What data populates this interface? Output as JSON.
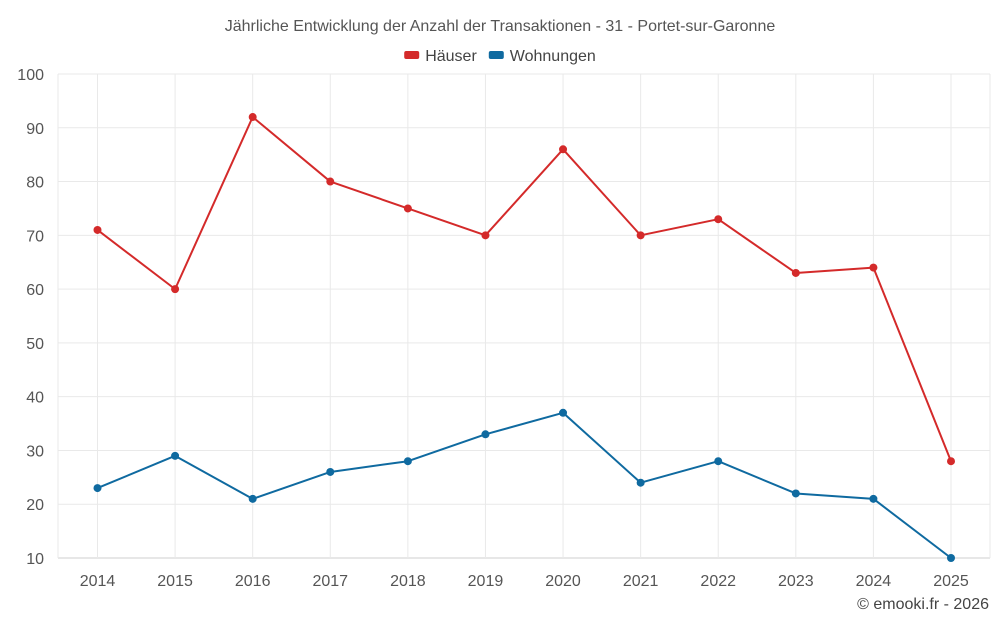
{
  "chart_data": {
    "type": "line",
    "title": "Jährliche Entwicklung der Anzahl der Transaktionen - 31 - Portet-sur-Garonne",
    "categories": [
      "2014",
      "2015",
      "2016",
      "2017",
      "2018",
      "2019",
      "2020",
      "2021",
      "2022",
      "2023",
      "2024",
      "2025"
    ],
    "ylim": [
      10,
      100
    ],
    "yticks": [
      10,
      20,
      30,
      40,
      50,
      60,
      70,
      80,
      90,
      100
    ],
    "grid": true,
    "legend_position": "top-center",
    "series": [
      {
        "name": "Häuser",
        "color": "#d42a2a",
        "values": [
          71,
          60,
          92,
          80,
          75,
          70,
          86,
          70,
          73,
          63,
          64,
          28
        ]
      },
      {
        "name": "Wohnungen",
        "color": "#0f6aa0",
        "values": [
          23,
          29,
          21,
          26,
          28,
          33,
          37,
          24,
          28,
          22,
          21,
          10
        ]
      }
    ]
  },
  "credit": "© emooki.fr - 2026"
}
